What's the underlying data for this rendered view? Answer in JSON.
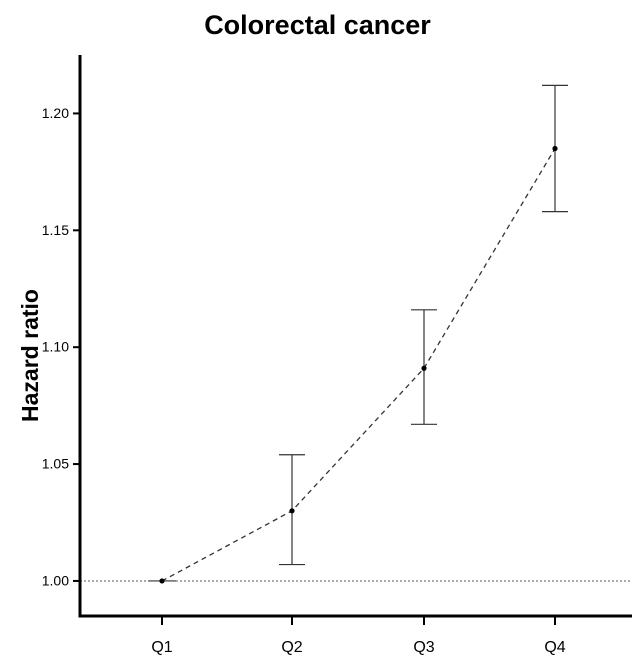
{
  "chart_data": {
    "type": "line",
    "title": "Colorectal cancer",
    "xlabel": "",
    "ylabel": "Hazard ratio",
    "categories": [
      "Q1",
      "Q2",
      "Q3",
      "Q4"
    ],
    "series": [
      {
        "values": [
          1.0,
          1.03,
          1.091,
          1.185
        ],
        "ci_lower": [
          1.0,
          1.007,
          1.067,
          1.158
        ],
        "ci_upper": [
          1.0,
          1.054,
          1.116,
          1.212
        ]
      }
    ],
    "ylim": [
      0.985,
      1.225
    ],
    "yticks": [
      "1.00",
      "1.05",
      "1.10",
      "1.15",
      "1.20"
    ],
    "reference_line": 1.0,
    "line_style": "dashed",
    "grid": false,
    "colors": {
      "axis": "#000000",
      "line": "#333333",
      "error_bar": "#333333",
      "marker": "#000000",
      "reference": "#555555"
    }
  }
}
